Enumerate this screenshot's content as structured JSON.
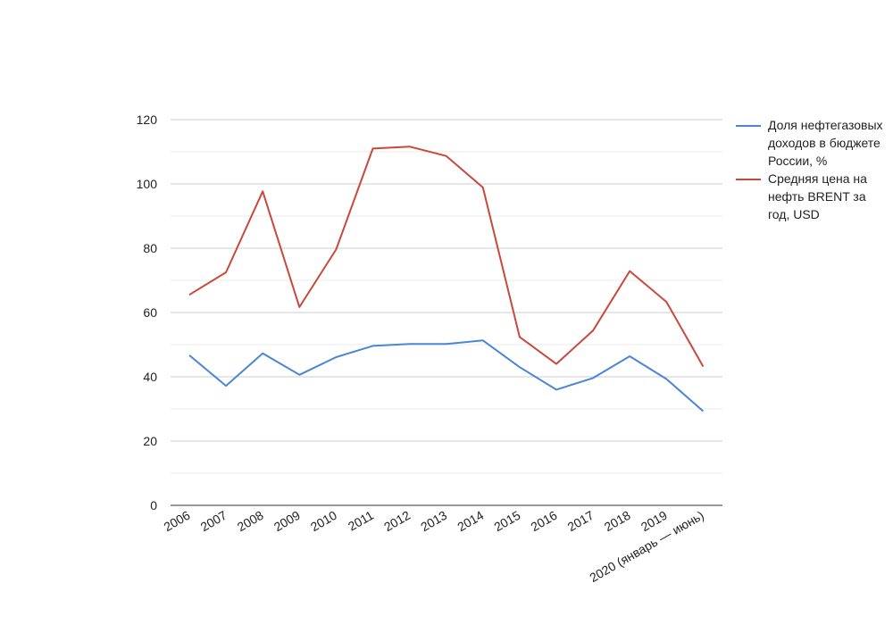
{
  "chart_data": {
    "type": "line",
    "categories": [
      "2006",
      "2007",
      "2008",
      "2009",
      "2010",
      "2011",
      "2012",
      "2013",
      "2014",
      "2015",
      "2016",
      "2017",
      "2018",
      "2019",
      "2020 (январь — июнь)"
    ],
    "series": [
      {
        "name": "Доля нефтегазовых доходов в бюджете России, %",
        "color": "#4a86d4",
        "values": [
          46.7,
          37.2,
          47.3,
          40.6,
          46.1,
          49.6,
          50.2,
          50.2,
          51.3,
          43.0,
          36.0,
          39.6,
          46.4,
          39.3,
          29.3
        ]
      },
      {
        "name": "Средняя цена на нефть BRENT за год, USD",
        "color": "#c9483b",
        "values": [
          65.5,
          72.5,
          97.7,
          61.7,
          79.6,
          111.0,
          111.6,
          108.7,
          98.9,
          52.4,
          44.0,
          54.4,
          72.9,
          63.3,
          43.2
        ]
      }
    ],
    "y_ticks": [
      "0",
      "20",
      "40",
      "60",
      "80",
      "100",
      "120"
    ],
    "ylim": [
      0,
      120
    ],
    "grid": true,
    "legend_position": "right"
  }
}
